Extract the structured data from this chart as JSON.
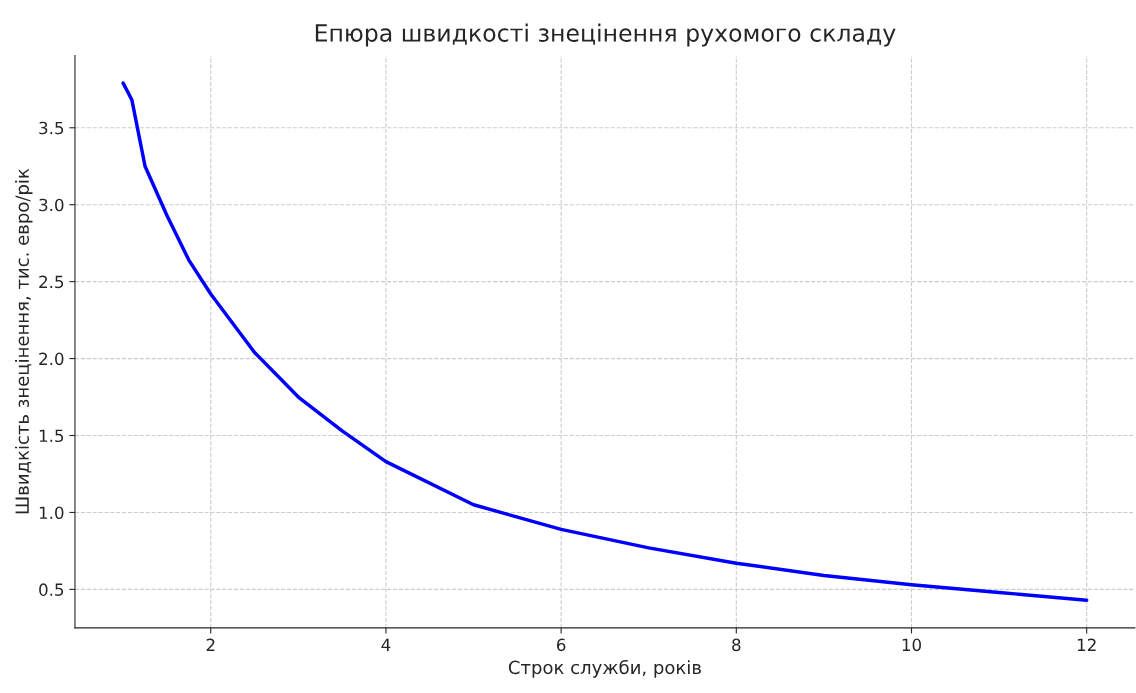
{
  "chart_data": {
    "type": "line",
    "title": "Епюра швидкості знецінення рухомого складу",
    "xlabel": "Строк служби, років",
    "ylabel": "Швидкість знецінення, тис. евро/рік",
    "series": [
      {
        "color": "#0000ff",
        "x": [
          1,
          1.1,
          1.25,
          1.5,
          1.75,
          2,
          2.5,
          3,
          3.5,
          4,
          5,
          6,
          7,
          8,
          9,
          10,
          11,
          12
        ],
        "values": [
          3.79,
          3.68,
          3.25,
          2.93,
          2.64,
          2.42,
          2.04,
          1.75,
          1.53,
          1.33,
          1.05,
          0.89,
          0.77,
          0.67,
          0.59,
          0.53,
          0.48,
          0.43
        ]
      }
    ],
    "xlim": [
      0.45,
      12.55
    ],
    "xticks": [
      2,
      4,
      6,
      8,
      10,
      12
    ],
    "ylim": [
      0.25,
      3.97
    ],
    "yticks": [
      0.5,
      {
        "value": 1,
        "label": "1.0"
      },
      1.5,
      {
        "value": 2,
        "label": "2.0"
      },
      2.5,
      {
        "value": 3,
        "label": "3.0"
      },
      3.5
    ],
    "grid": true,
    "line_style": "solid",
    "marker": "none"
  }
}
